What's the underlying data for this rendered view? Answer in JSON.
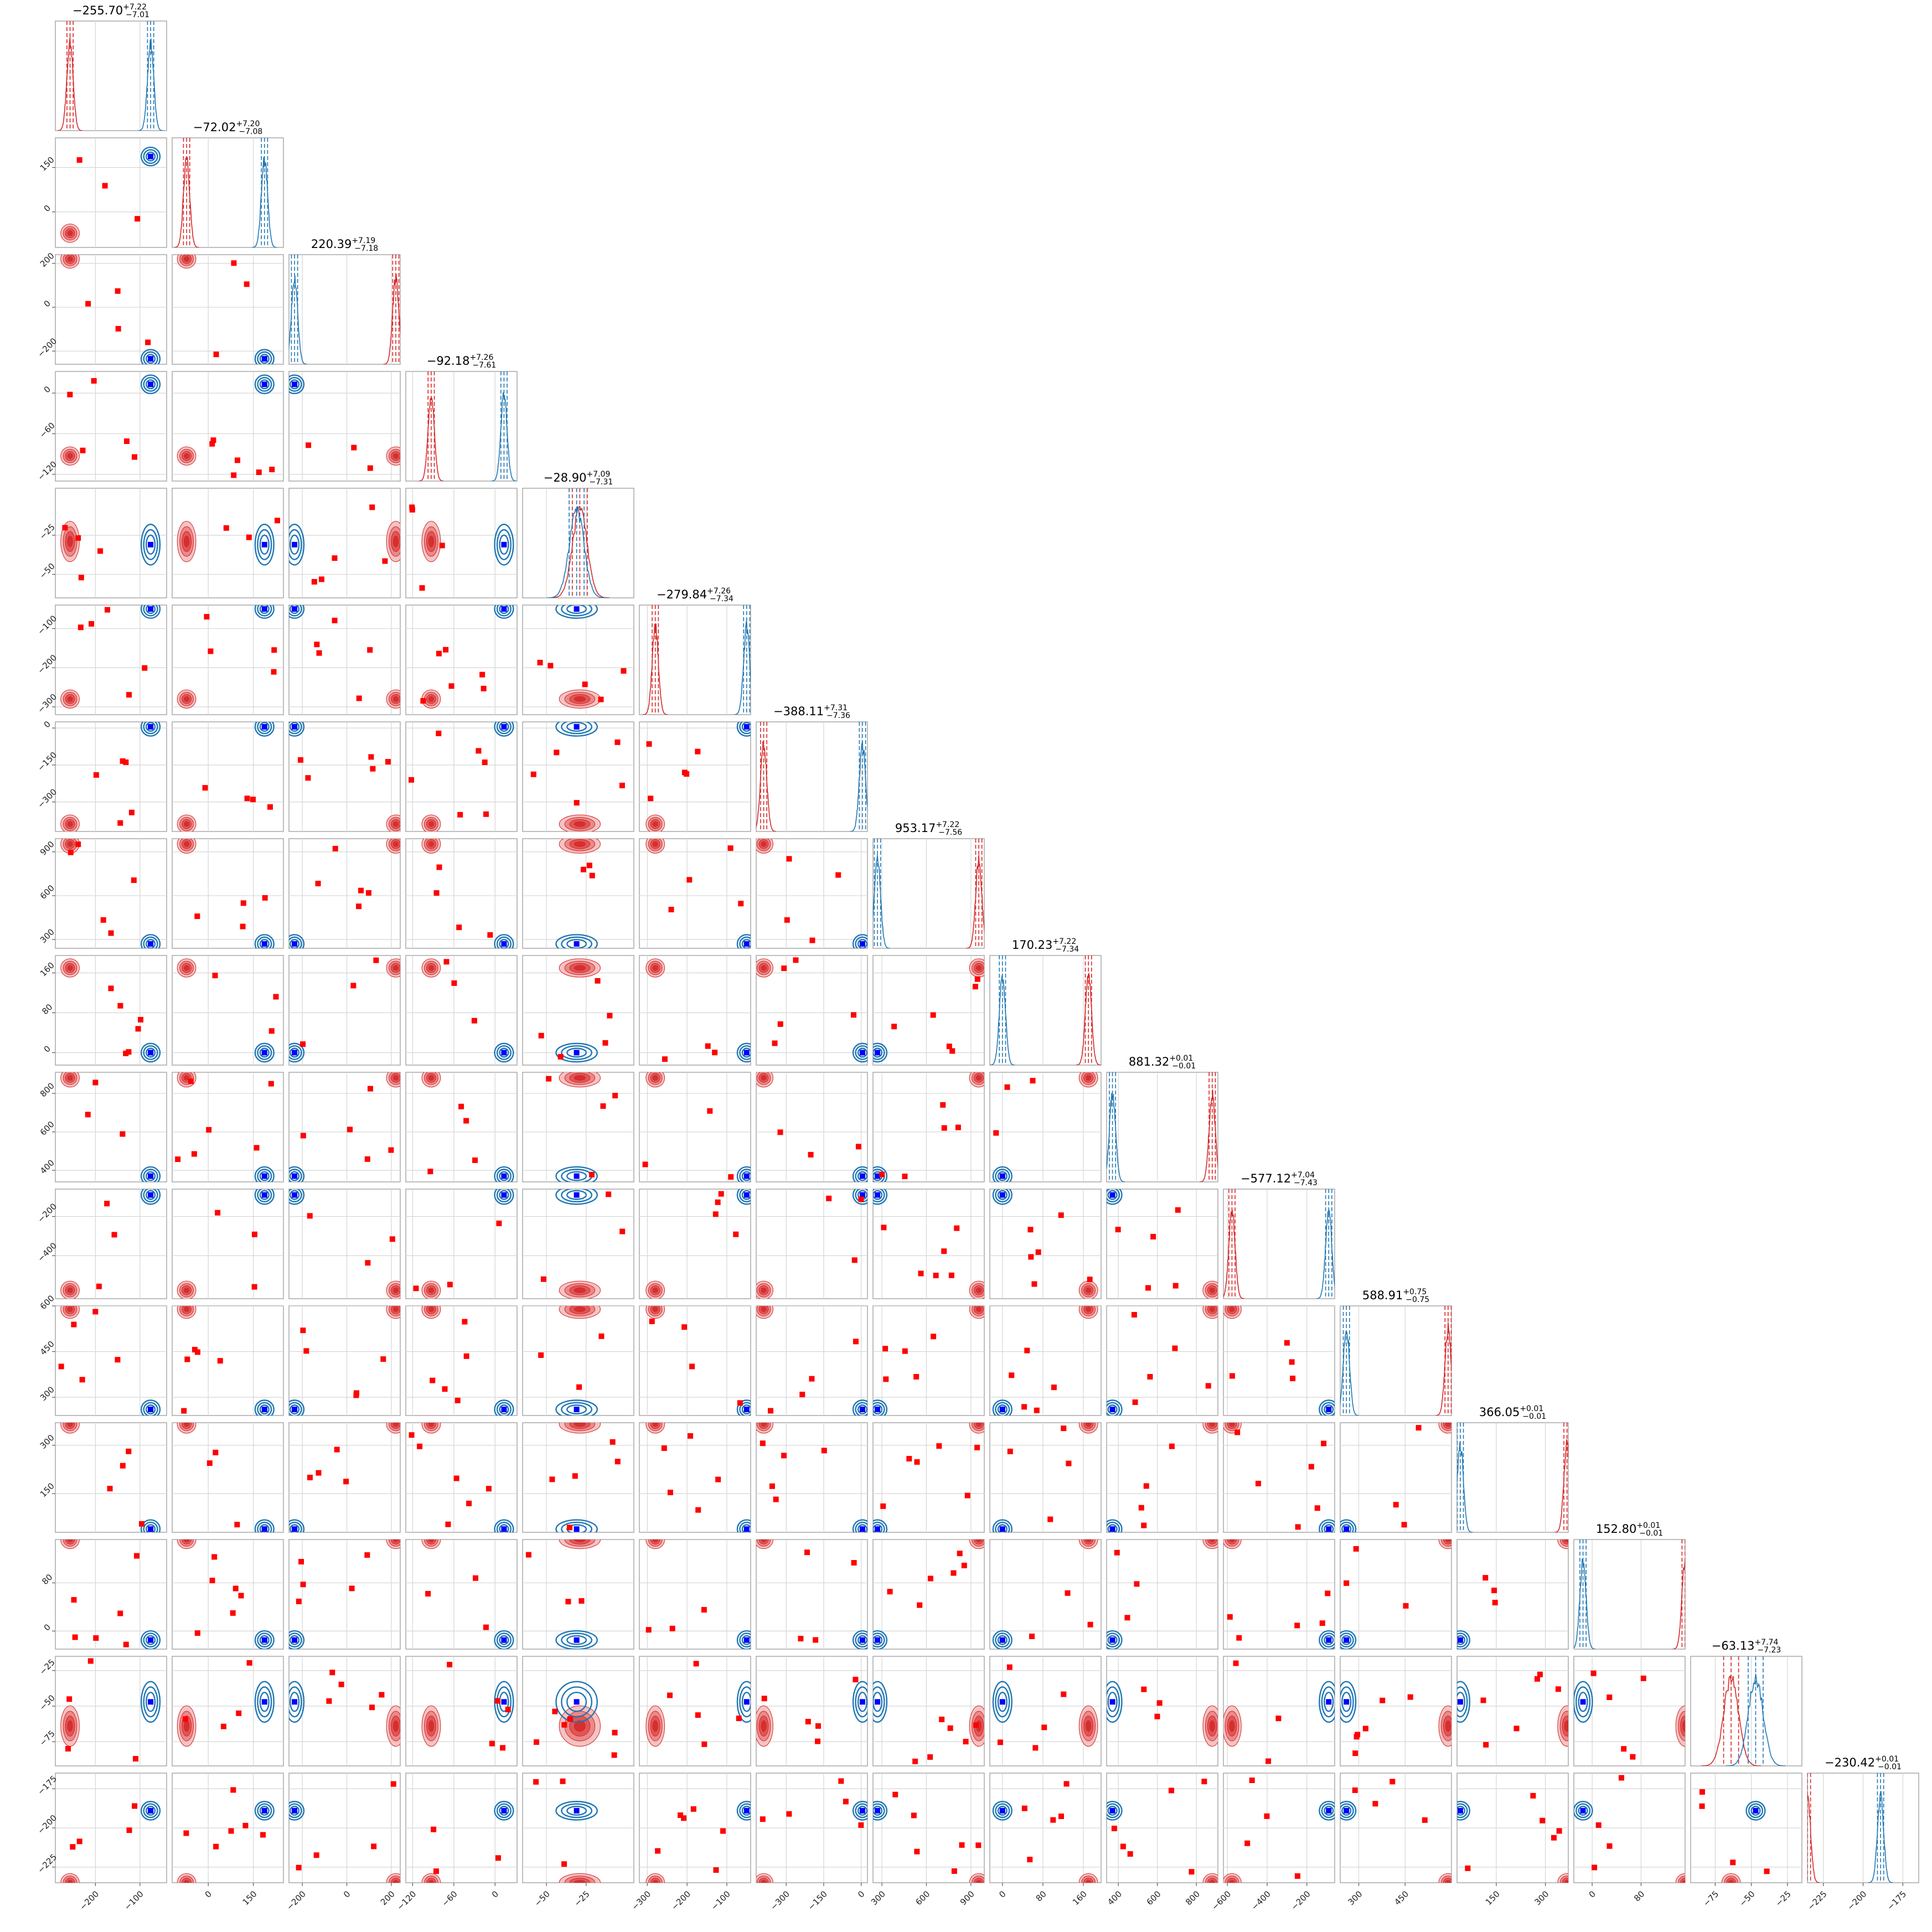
{
  "chart_data": {
    "type": "scatter",
    "subtype": "corner-plot",
    "n_params": 16,
    "series": [
      {
        "name": "",
        "color": "#d62728",
        "marker_color": "#ff0000"
      },
      {
        "name": "",
        "color": "#1f77b4",
        "marker_color": "#0000ff"
      }
    ],
    "params": [
      {
        "title": "−255.70",
        "plus": "+7.22",
        "minus": "−7.01",
        "range": [
          -290,
          -40
        ],
        "red": -257,
        "blue": -76,
        "ticks": [
          -200,
          -100
        ],
        "yticks": []
      },
      {
        "title": "−72.02",
        "plus": "+7.20",
        "minus": "−7.08",
        "range": [
          -120,
          250
        ],
        "red": -72,
        "blue": 187,
        "ticks": [
          0,
          150
        ],
        "yticks": [
          0,
          150
        ]
      },
      {
        "title": "220.39",
        "plus": "+7.19",
        "minus": "−7.18",
        "range": [
          -260,
          240
        ],
        "red": 220,
        "blue": -235,
        "ticks": [
          -200,
          0,
          200
        ],
        "yticks": [
          -200,
          0,
          200
        ]
      },
      {
        "title": "−92.18",
        "plus": "+7.26",
        "minus": "−7.61",
        "range": [
          -130,
          32
        ],
        "red": -93,
        "blue": 13,
        "ticks": [
          -120,
          -60,
          0
        ],
        "yticks": [
          -120,
          -60,
          0
        ]
      },
      {
        "title": "−28.90",
        "plus": "+7.09",
        "minus": "−7.31",
        "range": [
          -65,
          5
        ],
        "red": -29,
        "blue": -31,
        "ticks": [
          -50,
          -25
        ],
        "yticks": [
          -50,
          -25
        ]
      },
      {
        "title": "−279.84",
        "plus": "+7.26",
        "minus": "−7.34",
        "range": [
          -320,
          -40
        ],
        "red": -280,
        "blue": -50,
        "ticks": [
          -300,
          -200,
          -100
        ],
        "yticks": [
          -300,
          -200,
          -100
        ]
      },
      {
        "title": "−388.11",
        "plus": "+7.31",
        "minus": "−7.36",
        "range": [
          -420,
          25
        ],
        "red": -390,
        "blue": 5,
        "ticks": [
          -300,
          -150,
          0
        ],
        "yticks": [
          -300,
          -150,
          0
        ]
      },
      {
        "title": "953.17",
        "plus": "+7.22",
        "minus": "−7.56",
        "range": [
          240,
          990
        ],
        "red": 953,
        "blue": 270,
        "ticks": [
          300,
          600,
          900
        ],
        "yticks": [
          300,
          600,
          900
        ]
      },
      {
        "title": "170.23",
        "plus": "+7.22",
        "minus": "−7.34",
        "range": [
          -25,
          195
        ],
        "red": 170,
        "blue": 0,
        "ticks": [
          0,
          80,
          160
        ],
        "yticks": [
          0,
          80,
          160
        ]
      },
      {
        "title": "881.32",
        "plus": "+0.01",
        "minus": "−0.01",
        "range": [
          340,
          910
        ],
        "red": 881,
        "blue": 370,
        "ticks": [
          400,
          600,
          800
        ],
        "yticks": [
          400,
          600,
          800
        ]
      },
      {
        "title": "−577.12",
        "plus": "+7.04",
        "minus": "−7.43",
        "range": [
          -620,
          -60
        ],
        "red": -577,
        "blue": -90,
        "ticks": [
          -600,
          -400,
          -200
        ],
        "yticks": [
          -400,
          -200
        ]
      },
      {
        "title": "588.91",
        "plus": "+0.75",
        "minus": "−0.75",
        "range": [
          240,
          600
        ],
        "red": 589,
        "blue": 260,
        "ticks": [
          300,
          450
        ],
        "yticks": [
          300,
          450,
          600
        ]
      },
      {
        "title": "366.05",
        "plus": "+0.01",
        "minus": "−0.01",
        "range": [
          30,
          370
        ],
        "red": 366,
        "blue": 40,
        "ticks": [
          150,
          300
        ],
        "yticks": [
          150,
          300
        ]
      },
      {
        "title": "152.80",
        "plus": "+0.01",
        "minus": "−0.01",
        "range": [
          -30,
          152
        ],
        "red": 152,
        "blue": -15,
        "ticks": [
          0,
          80
        ],
        "yticks": [
          0,
          80
        ]
      },
      {
        "title": "−63.13",
        "plus": "+7.74",
        "minus": "−7.23",
        "range": [
          -92,
          -15
        ],
        "red": -64,
        "blue": -47,
        "ticks": [
          -75,
          -50,
          -25
        ],
        "yticks": [
          -75,
          -50,
          -25
        ]
      },
      {
        "title": "−230.42",
        "plus": "+0.01",
        "minus": "−0.01",
        "range": [
          -235,
          -165
        ],
        "red": -235,
        "blue": -189,
        "ticks": [
          -225,
          -200,
          -175
        ],
        "yticks": [
          -225,
          -200,
          -175
        ]
      }
    ],
    "scatter_seed": 1734
  }
}
